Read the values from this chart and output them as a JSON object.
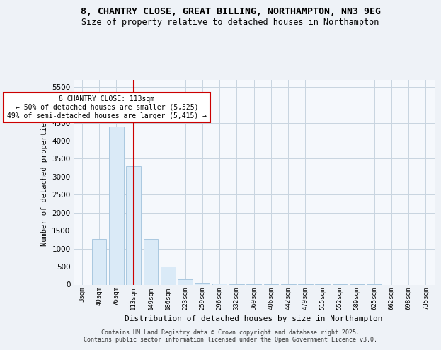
{
  "title_line1": "8, CHANTRY CLOSE, GREAT BILLING, NORTHAMPTON, NN3 9EG",
  "title_line2": "Size of property relative to detached houses in Northampton",
  "xlabel": "Distribution of detached houses by size in Northampton",
  "ylabel": "Number of detached properties",
  "bar_bins": [
    "3sqm",
    "40sqm",
    "76sqm",
    "113sqm",
    "149sqm",
    "186sqm",
    "223sqm",
    "259sqm",
    "296sqm",
    "332sqm",
    "369sqm",
    "406sqm",
    "442sqm",
    "479sqm",
    "515sqm",
    "552sqm",
    "589sqm",
    "625sqm",
    "662sqm",
    "698sqm",
    "735sqm"
  ],
  "bar_values": [
    0,
    1270,
    4390,
    3300,
    1270,
    500,
    150,
    50,
    25,
    12,
    8,
    4,
    3,
    2,
    2,
    1,
    1,
    1,
    0,
    0,
    0
  ],
  "bar_color": "#daeaf7",
  "bar_edge_color": "#aac8e0",
  "vline_x_index": 3,
  "vline_color": "#cc0000",
  "annotation_text_line1": "8 CHANTRY CLOSE: 113sqm",
  "annotation_text_line2": "← 50% of detached houses are smaller (5,525)",
  "annotation_text_line3": "49% of semi-detached houses are larger (5,415) →",
  "annotation_box_color": "#cc0000",
  "annotation_text_color": "#000000",
  "ylim": [
    0,
    5700
  ],
  "yticks": [
    0,
    500,
    1000,
    1500,
    2000,
    2500,
    3000,
    3500,
    4000,
    4500,
    5000,
    5500
  ],
  "footer_line1": "Contains HM Land Registry data © Crown copyright and database right 2025.",
  "footer_line2": "Contains public sector information licensed under the Open Government Licence v3.0.",
  "background_color": "#eef2f7",
  "plot_background_color": "#f5f8fc",
  "grid_color": "#c8d4e0"
}
